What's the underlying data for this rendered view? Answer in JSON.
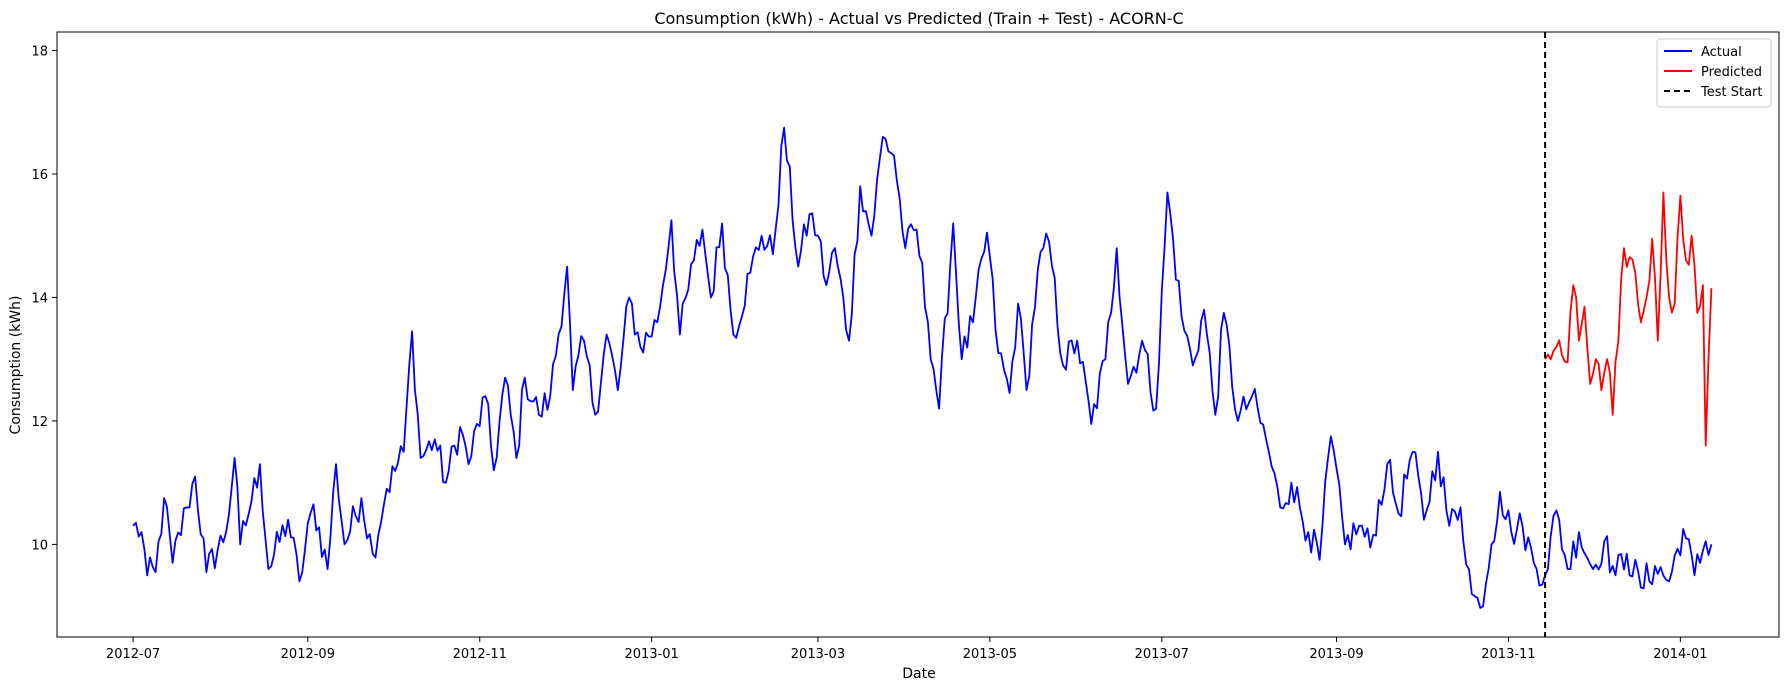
{
  "chart_data": {
    "type": "line",
    "title": "Consumption (kWh) - Actual vs Predicted (Train + Test) - ACORN-C",
    "xlabel": "Date",
    "ylabel": "Consumption (kWh)",
    "x_range": [
      "2012-06-04",
      "2014-02-05"
    ],
    "ylim": [
      8.5,
      18.3
    ],
    "grid": false,
    "legend_position": "top-right",
    "x_ticks": [
      "2012-07",
      "2012-09",
      "2012-11",
      "2013-01",
      "2013-03",
      "2013-05",
      "2013-07",
      "2013-09",
      "2013-11",
      "2014-01"
    ],
    "y_ticks": [
      10,
      12,
      14,
      16,
      18
    ],
    "test_start": "2013-11-14",
    "test_start_label": "Test Start",
    "series": [
      {
        "name": "Actual",
        "color": "#0000ff",
        "start": "2012-07-01",
        "end": "2014-01-12",
        "keypoints": [
          [
            "2012-07-01",
            10.3
          ],
          [
            "2012-07-04",
            10.2
          ],
          [
            "2012-07-06",
            9.5
          ],
          [
            "2012-07-09",
            9.55
          ],
          [
            "2012-07-12",
            10.75
          ],
          [
            "2012-07-15",
            9.7
          ],
          [
            "2012-07-20",
            10.6
          ],
          [
            "2012-07-23",
            11.1
          ],
          [
            "2012-07-27",
            9.55
          ],
          [
            "2012-08-03",
            10.2
          ],
          [
            "2012-08-06",
            11.4
          ],
          [
            "2012-08-08",
            10.0
          ],
          [
            "2012-08-12",
            10.7
          ],
          [
            "2012-08-15",
            11.3
          ],
          [
            "2012-08-18",
            9.6
          ],
          [
            "2012-08-25",
            10.4
          ],
          [
            "2012-08-29",
            9.4
          ],
          [
            "2012-09-03",
            10.65
          ],
          [
            "2012-09-08",
            9.6
          ],
          [
            "2012-09-11",
            11.3
          ],
          [
            "2012-09-14",
            10.0
          ],
          [
            "2012-09-20",
            10.75
          ],
          [
            "2012-09-24",
            9.85
          ],
          [
            "2012-09-29",
            10.9
          ],
          [
            "2012-10-05",
            11.5
          ],
          [
            "2012-10-08",
            13.45
          ],
          [
            "2012-10-11",
            11.4
          ],
          [
            "2012-10-16",
            11.7
          ],
          [
            "2012-10-20",
            11.0
          ],
          [
            "2012-10-25",
            11.9
          ],
          [
            "2012-10-28",
            11.3
          ],
          [
            "2012-11-03",
            12.4
          ],
          [
            "2012-11-06",
            11.2
          ],
          [
            "2012-11-10",
            12.7
          ],
          [
            "2012-11-14",
            11.4
          ],
          [
            "2012-11-17",
            12.7
          ],
          [
            "2012-11-22",
            12.1
          ],
          [
            "2012-11-26",
            12.4
          ],
          [
            "2012-12-02",
            14.5
          ],
          [
            "2012-12-04",
            12.5
          ],
          [
            "2012-12-08",
            13.3
          ],
          [
            "2012-12-12",
            12.1
          ],
          [
            "2012-12-16",
            13.4
          ],
          [
            "2012-12-20",
            12.5
          ],
          [
            "2012-12-24",
            14.0
          ],
          [
            "2012-12-28",
            13.2
          ],
          [
            "2013-01-03",
            13.6
          ],
          [
            "2013-01-08",
            15.25
          ],
          [
            "2013-01-11",
            13.4
          ],
          [
            "2013-01-16",
            14.6
          ],
          [
            "2013-01-19",
            15.1
          ],
          [
            "2013-01-22",
            14.0
          ],
          [
            "2013-01-26",
            15.2
          ],
          [
            "2013-01-30",
            13.4
          ],
          [
            "2013-02-05",
            14.4
          ],
          [
            "2013-02-09",
            15.0
          ],
          [
            "2013-02-13",
            14.7
          ],
          [
            "2013-02-17",
            16.75
          ],
          [
            "2013-02-22",
            14.5
          ],
          [
            "2013-02-26",
            15.35
          ],
          [
            "2013-03-01",
            15.0
          ],
          [
            "2013-03-04",
            14.2
          ],
          [
            "2013-03-07",
            14.8
          ],
          [
            "2013-03-12",
            13.3
          ],
          [
            "2013-03-16",
            15.8
          ],
          [
            "2013-03-20",
            15.0
          ],
          [
            "2013-03-24",
            16.6
          ],
          [
            "2013-03-28",
            16.3
          ],
          [
            "2013-04-01",
            14.8
          ],
          [
            "2013-04-05",
            15.1
          ],
          [
            "2013-04-09",
            13.6
          ],
          [
            "2013-04-13",
            12.2
          ],
          [
            "2013-04-18",
            15.2
          ],
          [
            "2013-04-21",
            13.0
          ],
          [
            "2013-04-25",
            13.6
          ],
          [
            "2013-04-30",
            15.05
          ],
          [
            "2013-05-04",
            13.1
          ],
          [
            "2013-05-08",
            12.45
          ],
          [
            "2013-05-11",
            13.9
          ],
          [
            "2013-05-14",
            12.5
          ],
          [
            "2013-05-18",
            14.45
          ],
          [
            "2013-05-22",
            14.9
          ],
          [
            "2013-05-27",
            12.9
          ],
          [
            "2013-06-01",
            13.3
          ],
          [
            "2013-06-06",
            11.95
          ],
          [
            "2013-06-11",
            13.0
          ],
          [
            "2013-06-15",
            14.8
          ],
          [
            "2013-06-19",
            12.6
          ],
          [
            "2013-06-24",
            13.3
          ],
          [
            "2013-06-29",
            12.2
          ],
          [
            "2013-07-03",
            15.7
          ],
          [
            "2013-07-08",
            13.7
          ],
          [
            "2013-07-12",
            12.9
          ],
          [
            "2013-07-16",
            13.8
          ],
          [
            "2013-07-20",
            12.1
          ],
          [
            "2013-07-23",
            13.75
          ],
          [
            "2013-07-28",
            12.0
          ],
          [
            "2013-08-02",
            12.4
          ],
          [
            "2013-08-07",
            11.7
          ],
          [
            "2013-08-12",
            10.6
          ],
          [
            "2013-08-16",
            11.0
          ],
          [
            "2013-08-22",
            10.2
          ],
          [
            "2013-08-26",
            9.75
          ],
          [
            "2013-08-30",
            11.75
          ],
          [
            "2013-09-04",
            10.0
          ],
          [
            "2013-09-09",
            10.3
          ],
          [
            "2013-09-13",
            9.95
          ],
          [
            "2013-09-19",
            11.3
          ],
          [
            "2013-09-23",
            10.5
          ],
          [
            "2013-09-28",
            11.5
          ],
          [
            "2013-10-02",
            10.4
          ],
          [
            "2013-10-07",
            11.5
          ],
          [
            "2013-10-11",
            10.3
          ],
          [
            "2013-10-15",
            10.6
          ],
          [
            "2013-10-19",
            9.2
          ],
          [
            "2013-10-22",
            8.97
          ],
          [
            "2013-10-26",
            10.0
          ],
          [
            "2013-10-29",
            10.85
          ],
          [
            "2013-11-02",
            10.2
          ],
          [
            "2013-11-06",
            10.3
          ],
          [
            "2013-11-10",
            9.7
          ],
          [
            "2013-11-14",
            9.5
          ],
          [
            "2013-11-18",
            10.55
          ],
          [
            "2013-11-22",
            9.6
          ],
          [
            "2013-11-26",
            10.2
          ],
          [
            "2013-12-01",
            9.6
          ],
          [
            "2013-12-05",
            10.05
          ],
          [
            "2013-12-09",
            9.5
          ],
          [
            "2013-12-13",
            9.85
          ],
          [
            "2013-12-18",
            9.3
          ],
          [
            "2013-12-23",
            9.65
          ],
          [
            "2013-12-28",
            9.4
          ],
          [
            "2014-01-02",
            10.25
          ],
          [
            "2014-01-06",
            9.5
          ],
          [
            "2014-01-10",
            10.05
          ],
          [
            "2014-01-12",
            10.0
          ]
        ]
      },
      {
        "name": "Predicted",
        "color": "#ff0000",
        "start": "2013-11-14",
        "end": "2014-01-12",
        "keypoints": [
          [
            "2013-11-14",
            13.0
          ],
          [
            "2013-11-18",
            13.2
          ],
          [
            "2013-11-22",
            12.95
          ],
          [
            "2013-11-24",
            14.2
          ],
          [
            "2013-11-26",
            13.3
          ],
          [
            "2013-11-28",
            13.85
          ],
          [
            "2013-11-30",
            12.6
          ],
          [
            "2013-12-02",
            13.0
          ],
          [
            "2013-12-04",
            12.5
          ],
          [
            "2013-12-06",
            13.0
          ],
          [
            "2013-12-08",
            12.1
          ],
          [
            "2013-12-10",
            13.3
          ],
          [
            "2013-12-12",
            14.8
          ],
          [
            "2013-12-16",
            14.4
          ],
          [
            "2013-12-18",
            13.6
          ],
          [
            "2013-12-20",
            14.0
          ],
          [
            "2013-12-22",
            14.95
          ],
          [
            "2013-12-24",
            13.3
          ],
          [
            "2013-12-26",
            15.7
          ],
          [
            "2013-12-28",
            14.0
          ],
          [
            "2013-12-30",
            13.9
          ],
          [
            "2014-01-01",
            15.65
          ],
          [
            "2014-01-03",
            14.6
          ],
          [
            "2014-01-05",
            15.0
          ],
          [
            "2014-01-07",
            13.75
          ],
          [
            "2014-01-09",
            14.2
          ],
          [
            "2014-01-10",
            11.6
          ],
          [
            "2014-01-11",
            13.0
          ],
          [
            "2014-01-12",
            14.15
          ]
        ]
      }
    ]
  }
}
